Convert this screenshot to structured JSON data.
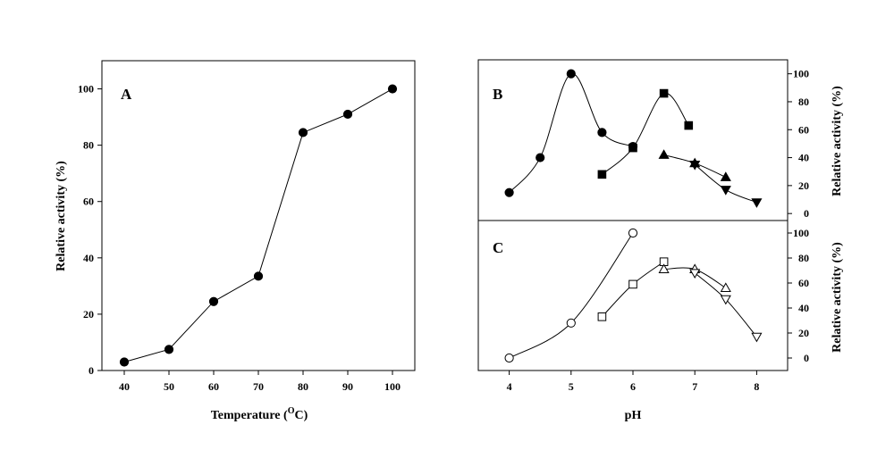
{
  "chart_data": [
    {
      "panel": "A",
      "type": "line",
      "xlabel_main": "Temperature (",
      "xlabel_sup": "O",
      "xlabel_tail": "C)",
      "ylabel": "Relative activity (%)",
      "xlim": [
        35,
        105
      ],
      "ylim": [
        0,
        110
      ],
      "xticks": [
        40,
        50,
        60,
        70,
        80,
        90,
        100
      ],
      "yticks": [
        0,
        20,
        40,
        60,
        80,
        100
      ],
      "series": [
        {
          "marker": "filled-circle",
          "x": [
            40,
            50,
            60,
            70,
            80,
            90,
            100
          ],
          "y": [
            3,
            7.5,
            24.5,
            33.5,
            84.5,
            91,
            100
          ]
        }
      ]
    },
    {
      "panel": "B",
      "type": "line",
      "ylabel": "Relative activity (%)",
      "xlim": [
        3.5,
        8.5
      ],
      "ylim": [
        -5,
        110
      ],
      "yticks": [
        0,
        20,
        40,
        60,
        80,
        100
      ],
      "series": [
        {
          "marker": "filled-circle",
          "x": [
            4,
            4.5,
            5,
            5.5,
            6
          ],
          "y": [
            15,
            40,
            100,
            58,
            48
          ]
        },
        {
          "marker": "filled-square",
          "x": [
            5.5,
            6,
            6.5,
            6.9
          ],
          "y": [
            28,
            47,
            86,
            63
          ]
        },
        {
          "marker": "filled-triangle-up",
          "x": [
            6.5,
            7,
            7.5
          ],
          "y": [
            42,
            36,
            26
          ]
        },
        {
          "marker": "filled-triangle-down",
          "x": [
            7,
            7.5,
            8
          ],
          "y": [
            35,
            17,
            8
          ]
        }
      ]
    },
    {
      "panel": "C",
      "type": "line",
      "xlabel": "pH",
      "ylabel": "Relative activity (%)",
      "xlim": [
        3.5,
        8.5
      ],
      "ylim": [
        -10,
        110
      ],
      "xticks": [
        4,
        5,
        6,
        7,
        8
      ],
      "yticks": [
        0,
        20,
        40,
        60,
        80,
        100
      ],
      "series": [
        {
          "marker": "open-circle",
          "x": [
            4,
            5,
            6
          ],
          "y": [
            0,
            28,
            100
          ]
        },
        {
          "marker": "open-square",
          "x": [
            5.5,
            6,
            6.5
          ],
          "y": [
            33,
            59,
            77
          ]
        },
        {
          "marker": "open-triangle-up",
          "x": [
            6.5,
            7,
            7.5
          ],
          "y": [
            71,
            71,
            56
          ]
        },
        {
          "marker": "open-triangle-down",
          "x": [
            7,
            7.5,
            8
          ],
          "y": [
            68,
            47,
            17
          ]
        }
      ]
    }
  ]
}
